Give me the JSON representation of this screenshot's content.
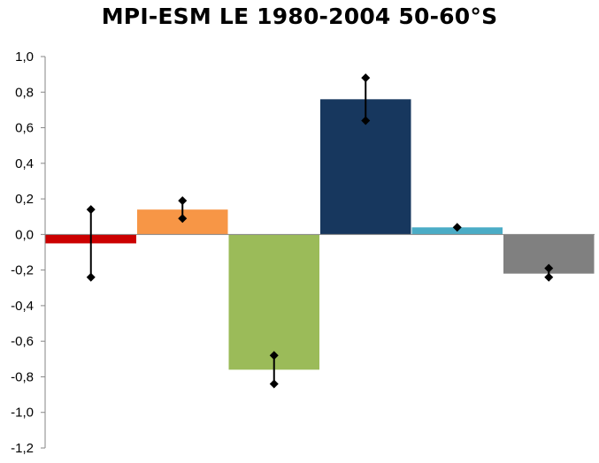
{
  "chart_data": {
    "type": "bar",
    "title": "MPI-ESM LE 1980-2004 50-60°S",
    "xlabel": "",
    "ylabel": "",
    "ylim": [
      -1.2,
      1.0
    ],
    "ytick_labels": [
      "1,0",
      "0,8",
      "0,6",
      "0,4",
      "0,2",
      "0,0",
      "-0,2",
      "-0,4",
      "-0,6",
      "-0,8",
      "-1,0",
      "-1,2"
    ],
    "yticks": [
      1.0,
      0.8,
      0.6,
      0.4,
      0.2,
      0.0,
      -0.2,
      -0.4,
      -0.6,
      -0.8,
      -1.0,
      -1.2
    ],
    "grid": false,
    "legend": "none",
    "bars": [
      {
        "value": -0.05,
        "color": "#cc0000",
        "err_low": -0.24,
        "err_high": 0.14
      },
      {
        "value": 0.14,
        "color": "#f79646",
        "err_low": 0.09,
        "err_high": 0.19
      },
      {
        "value": -0.76,
        "color": "#9bbb59",
        "err_low": -0.84,
        "err_high": -0.68
      },
      {
        "value": 0.76,
        "color": "#17375e",
        "err_low": 0.64,
        "err_high": 0.88
      },
      {
        "value": 0.04,
        "color": "#4bacc6",
        "err_low": 0.04,
        "err_high": 0.04
      },
      {
        "value": -0.22,
        "color": "#808080",
        "err_low": -0.24,
        "err_high": -0.19
      }
    ]
  }
}
